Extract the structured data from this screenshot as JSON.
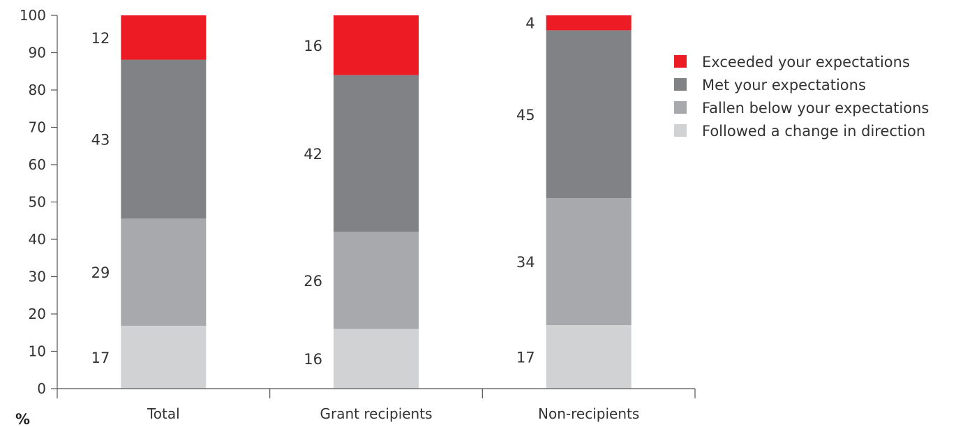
{
  "chart_data": {
    "type": "bar",
    "stacked": true,
    "title": "",
    "xlabel": "",
    "ylabel": "%",
    "ylim": [
      0,
      100
    ],
    "yticks": [
      0,
      10,
      20,
      30,
      40,
      50,
      60,
      70,
      80,
      90,
      100
    ],
    "grid": false,
    "legend_position": "right",
    "categories": [
      "Total",
      "Grant recipients",
      "Non-recipients"
    ],
    "series": [
      {
        "name": "Followed a change in direction",
        "color": "#d1d2d4",
        "values": [
          17,
          16,
          17
        ]
      },
      {
        "name": "Fallen below your expectations",
        "color": "#a7a9ac",
        "values": [
          29,
          26,
          34
        ]
      },
      {
        "name": "Met your expectations",
        "color": "#808285",
        "values": [
          43,
          42,
          45
        ]
      },
      {
        "name": "Exceeded your expectations",
        "color": "#ed1c24",
        "values": [
          12,
          16,
          4
        ]
      }
    ],
    "legend_order": [
      "Exceeded your expectations",
      "Met your expectations",
      "Fallen below your expectations",
      "Followed a change in direction"
    ]
  }
}
